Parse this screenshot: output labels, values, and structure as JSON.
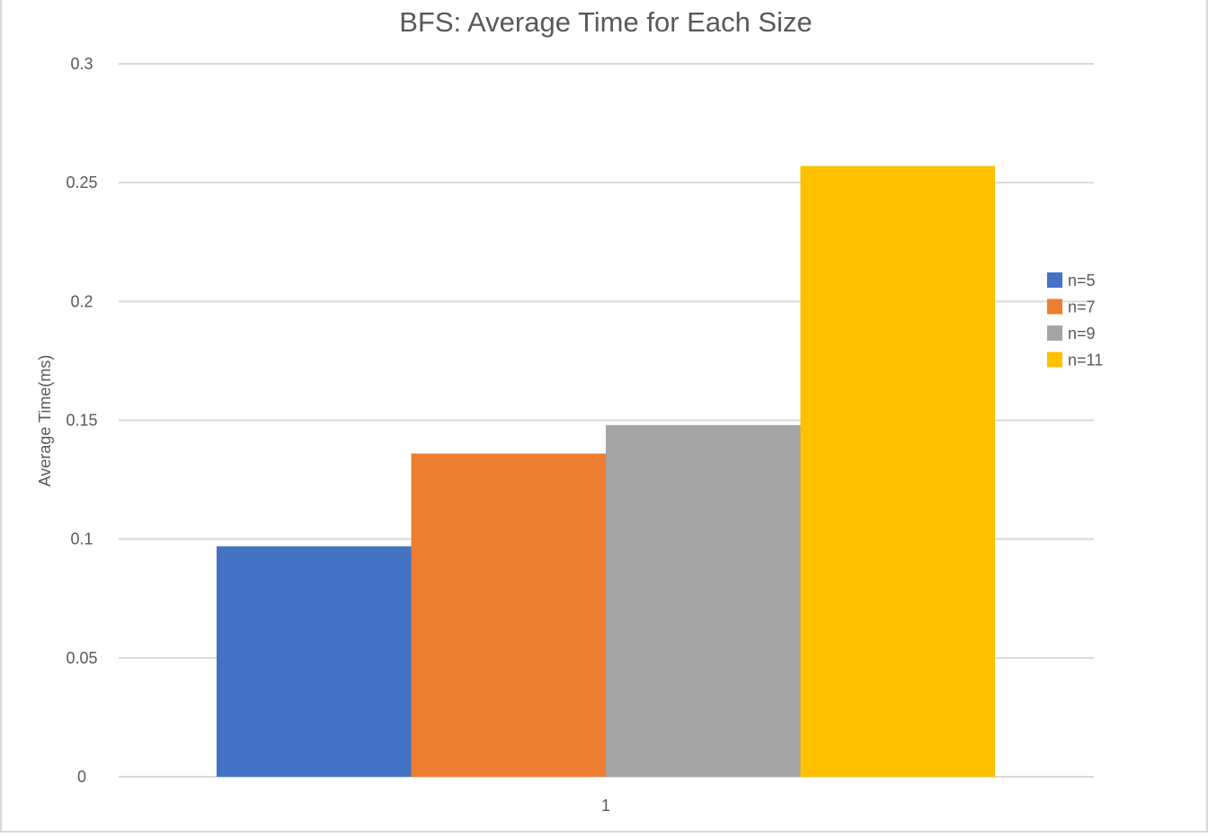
{
  "chart_data": {
    "type": "bar",
    "title": "BFS: Average Time for Each Size",
    "xlabel": "",
    "ylabel": "Average Time(ms)",
    "categories": [
      "1"
    ],
    "series": [
      {
        "name": "n=5",
        "values": [
          0.097
        ],
        "color": "#4472C4"
      },
      {
        "name": "n=7",
        "values": [
          0.136
        ],
        "color": "#ED7D31"
      },
      {
        "name": "n=9",
        "values": [
          0.148
        ],
        "color": "#A5A5A5"
      },
      {
        "name": "n=11",
        "values": [
          0.257
        ],
        "color": "#FFC000"
      }
    ],
    "ylim": [
      0,
      0.3
    ],
    "yticks": [
      0,
      0.05,
      0.1,
      0.15,
      0.2,
      0.25,
      0.3
    ],
    "ytick_labels": [
      "0",
      "0.05",
      "0.1",
      "0.15",
      "0.2",
      "0.25",
      "0.3"
    ],
    "grid": true,
    "legend_position": "right"
  }
}
